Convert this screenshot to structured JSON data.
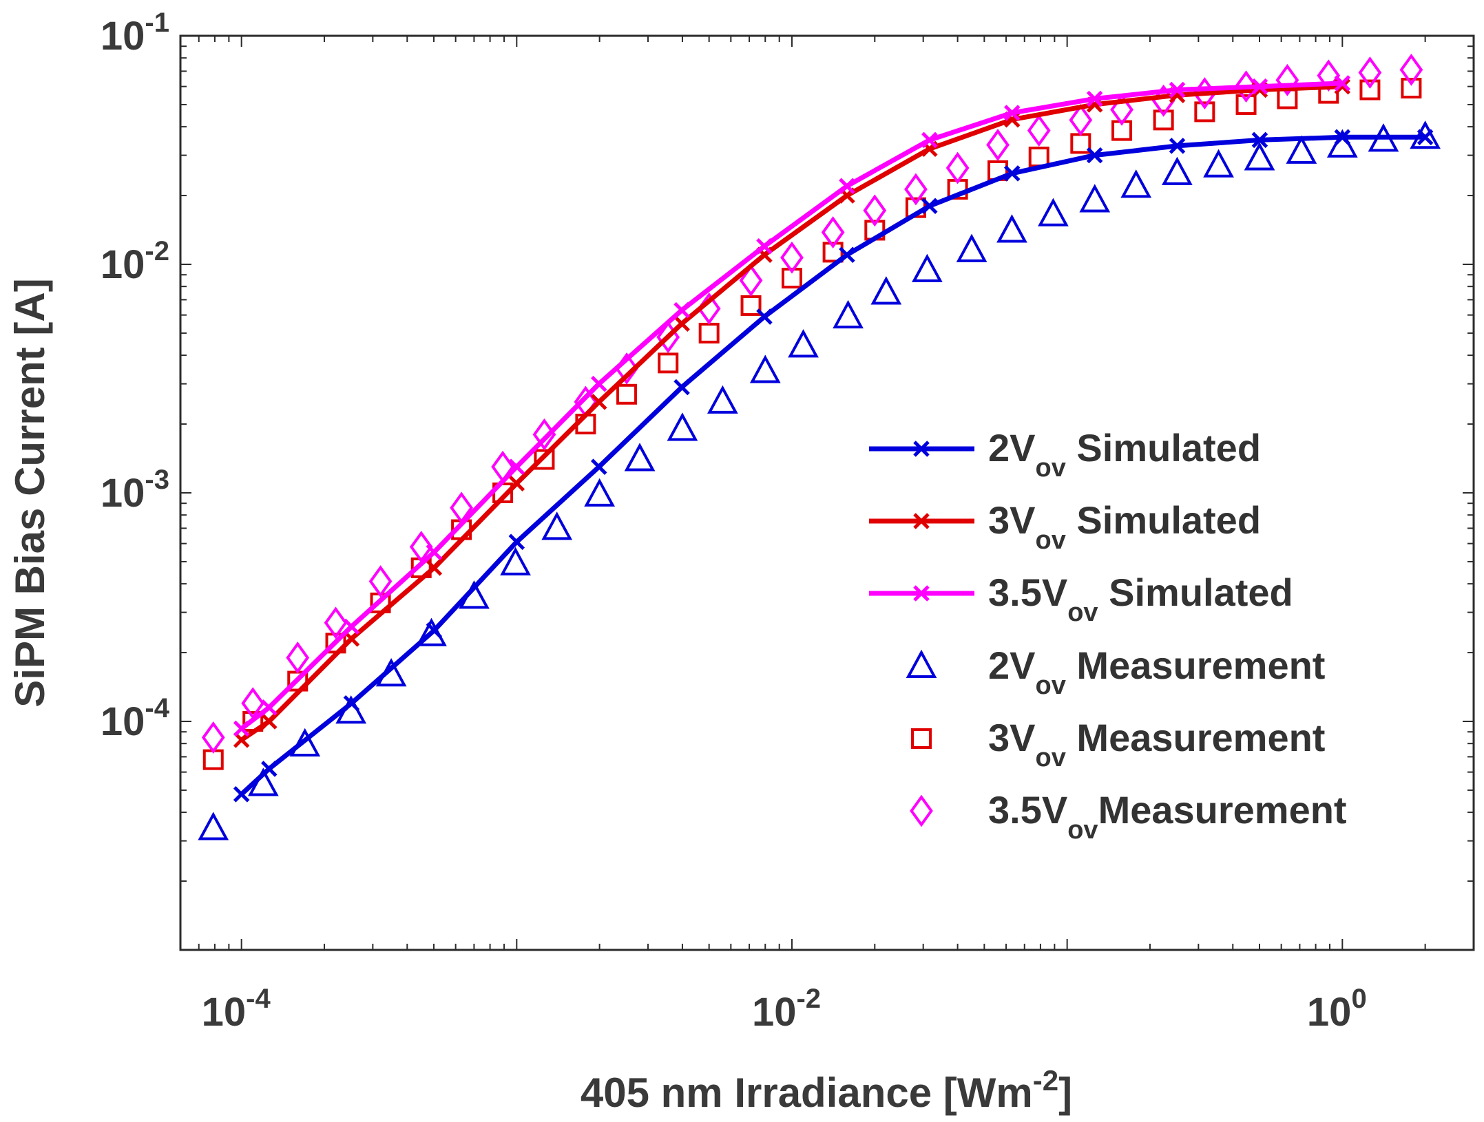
{
  "chart_data": {
    "type": "scatter",
    "xscale": "log",
    "yscale": "log",
    "xlabel": {
      "text": "405 nm Irradiance [Wm",
      "sup": "-2",
      "suffix": "]"
    },
    "ylabel": "SiPM Bias Current [A]",
    "xlim": [
      6e-05,
      3
    ],
    "ylim": [
      1e-05,
      0.1
    ],
    "xticks": [
      {
        "value": 0.0001,
        "base": "10",
        "exp": "-4"
      },
      {
        "value": 0.01,
        "base": "10",
        "exp": "-2"
      },
      {
        "value": 1,
        "base": "10",
        "exp": "0"
      }
    ],
    "yticks": [
      {
        "value": 0.1,
        "base": "10",
        "exp": "-1"
      },
      {
        "value": 0.01,
        "base": "10",
        "exp": "-2"
      },
      {
        "value": 0.001,
        "base": "10",
        "exp": "-3"
      },
      {
        "value": 0.0001,
        "base": "10",
        "exp": "-4"
      }
    ],
    "grid": false,
    "legend_position": "center-right",
    "series": [
      {
        "name": "2V_ov Simulated",
        "main": "2V",
        "sub": "ov",
        "rest": " Simulated",
        "kind": "line",
        "marker": "x",
        "color": "#0000dd",
        "x": [
          0.0001,
          0.000126,
          0.000251,
          0.000501,
          0.001,
          0.00199,
          0.00398,
          0.00794,
          0.01585,
          0.03162,
          0.0631,
          0.1259,
          0.2512,
          0.5012,
          1.0,
          2.0
        ],
        "y": [
          4.8e-05,
          6.2e-05,
          0.00012,
          0.00025,
          0.00061,
          0.0013,
          0.0029,
          0.0059,
          0.011,
          0.018,
          0.025,
          0.03,
          0.033,
          0.035,
          0.036,
          0.036
        ]
      },
      {
        "name": "3V_ov Simulated",
        "main": "3V",
        "sub": "ov",
        "rest": " Simulated",
        "kind": "line",
        "marker": "x",
        "color": "#e00000",
        "x": [
          0.0001,
          0.000126,
          0.000251,
          0.000501,
          0.001,
          0.00199,
          0.00398,
          0.00794,
          0.01585,
          0.03162,
          0.0631,
          0.1259,
          0.2512,
          0.5012,
          1.0
        ],
        "y": [
          8.3e-05,
          0.0001,
          0.00023,
          0.00047,
          0.0011,
          0.0025,
          0.0055,
          0.011,
          0.02,
          0.032,
          0.043,
          0.05,
          0.055,
          0.058,
          0.06
        ]
      },
      {
        "name": "3.5V_ov Simulated",
        "main": "3.5V",
        "sub": "ov",
        "rest": " Simulated",
        "kind": "line",
        "marker": "x",
        "color": "#ff00ff",
        "x": [
          0.0001,
          0.000126,
          0.000251,
          0.000501,
          0.001,
          0.00199,
          0.00398,
          0.00794,
          0.01585,
          0.03162,
          0.0631,
          0.1259,
          0.2512,
          0.5012,
          1.0
        ],
        "y": [
          9.3e-05,
          0.000115,
          0.00026,
          0.00055,
          0.0013,
          0.003,
          0.0063,
          0.012,
          0.022,
          0.035,
          0.046,
          0.053,
          0.058,
          0.06,
          0.062
        ]
      },
      {
        "name": "2V_ov Measurement",
        "main": "2V",
        "sub": "ov",
        "rest": " Measurement",
        "kind": "marker",
        "marker": "triangle",
        "color": "#0000dd",
        "x": [
          7.9e-05,
          0.00012,
          0.00017,
          0.00025,
          0.00035,
          0.00049,
          0.0007,
          0.00099,
          0.0014,
          0.002,
          0.0028,
          0.004,
          0.0056,
          0.008,
          0.011,
          0.016,
          0.022,
          0.031,
          0.045,
          0.063,
          0.089,
          0.126,
          0.178,
          0.251,
          0.355,
          0.5,
          0.71,
          1.0,
          1.41,
          2.0
        ],
        "y": [
          3.4e-05,
          5.3e-05,
          7.9e-05,
          0.00011,
          0.00016,
          0.00024,
          0.00035,
          0.00049,
          0.0007,
          0.00098,
          0.0014,
          0.0019,
          0.0025,
          0.0034,
          0.0044,
          0.0059,
          0.0075,
          0.0094,
          0.0115,
          0.014,
          0.0165,
          0.019,
          0.022,
          0.025,
          0.027,
          0.029,
          0.031,
          0.033,
          0.035,
          0.036
        ]
      },
      {
        "name": "3V_ov Measurement",
        "main": "3V",
        "sub": "ov",
        "rest": " Measurement",
        "kind": "marker",
        "marker": "square",
        "color": "#e00000",
        "x": [
          7.9e-05,
          0.00011,
          0.00016,
          0.00022,
          0.00032,
          0.00045,
          0.00063,
          0.00089,
          0.00126,
          0.00178,
          0.00251,
          0.00355,
          0.005,
          0.0071,
          0.01,
          0.0141,
          0.02,
          0.0282,
          0.04,
          0.056,
          0.079,
          0.112,
          0.158,
          0.224,
          0.316,
          0.447,
          0.631,
          0.891,
          1.26,
          1.78
        ],
        "y": [
          6.8e-05,
          0.0001,
          0.00015,
          0.00022,
          0.00033,
          0.00047,
          0.00069,
          0.001,
          0.0014,
          0.002,
          0.0027,
          0.0037,
          0.005,
          0.0066,
          0.0087,
          0.0113,
          0.0141,
          0.0177,
          0.0213,
          0.0257,
          0.0295,
          0.0338,
          0.0385,
          0.0428,
          0.0465,
          0.05,
          0.053,
          0.056,
          0.058,
          0.059
        ]
      },
      {
        "name": "3.5V_ov Measurement",
        "main": "3.5V",
        "sub": "ov",
        "rest": "Measurement",
        "kind": "marker",
        "marker": "diamond",
        "color": "#ff00ff",
        "x": [
          7.9e-05,
          0.00011,
          0.00016,
          0.00022,
          0.00032,
          0.00045,
          0.00063,
          0.00089,
          0.00126,
          0.00178,
          0.00251,
          0.00355,
          0.005,
          0.0071,
          0.01,
          0.0141,
          0.02,
          0.0282,
          0.04,
          0.056,
          0.079,
          0.112,
          0.158,
          0.224,
          0.316,
          0.447,
          0.631,
          0.891,
          1.26,
          1.78
        ],
        "y": [
          8.5e-05,
          0.00012,
          0.00019,
          0.00027,
          0.00041,
          0.00058,
          0.00086,
          0.0013,
          0.0018,
          0.0025,
          0.0035,
          0.0048,
          0.0064,
          0.0085,
          0.0107,
          0.0138,
          0.0172,
          0.0213,
          0.0264,
          0.0333,
          0.0385,
          0.0428,
          0.0475,
          0.052,
          0.056,
          0.06,
          0.064,
          0.067,
          0.069,
          0.071
        ]
      }
    ]
  }
}
